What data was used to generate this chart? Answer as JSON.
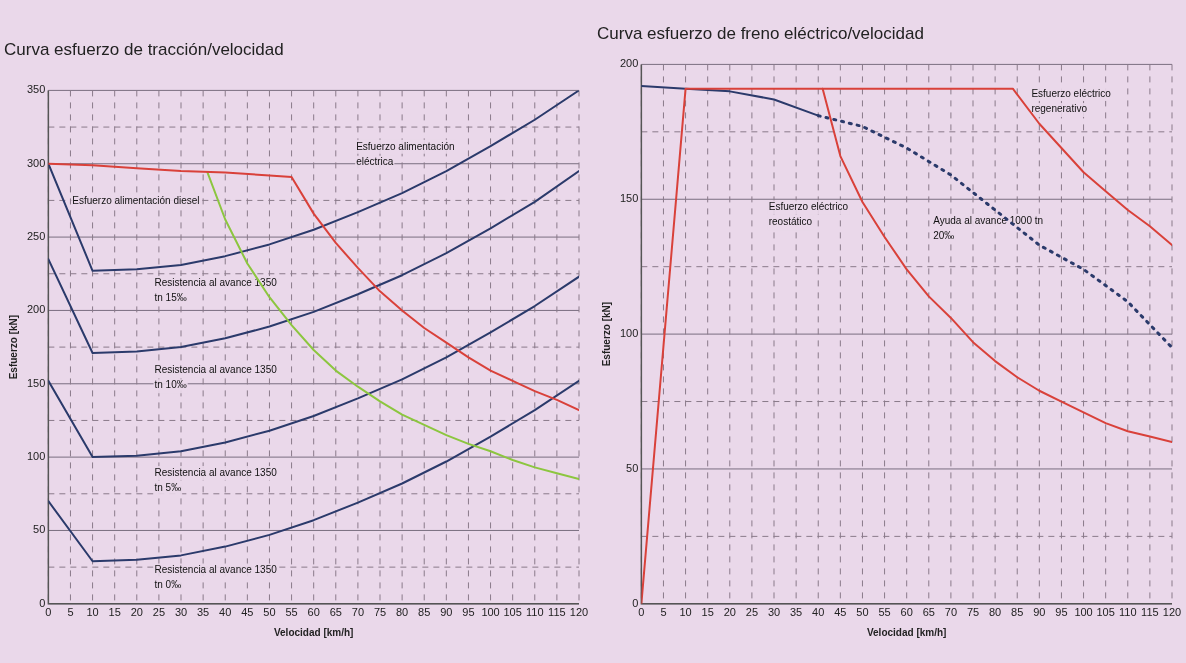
{
  "chart_data": [
    {
      "type": "line",
      "title": "Curva esfuerzo de tracción/velocidad",
      "xlabel": "Velocidad [km/h]",
      "ylabel": "Esfuerzo [kN]",
      "xlim": [
        0,
        120
      ],
      "xticks": [
        0,
        5,
        10,
        15,
        20,
        25,
        30,
        35,
        40,
        45,
        50,
        55,
        60,
        65,
        70,
        75,
        80,
        85,
        90,
        95,
        100,
        105,
        110,
        115,
        120
      ],
      "ylim": [
        0,
        350
      ],
      "yticks": [
        0,
        {
          "value": 25,
          "label": null
        },
        50,
        {
          "value": 75,
          "label": null
        },
        100,
        {
          "value": 125,
          "label": null
        },
        150,
        {
          "value": 175,
          "label": null
        },
        200,
        {
          "value": 225,
          "label": null
        },
        250,
        {
          "value": 275,
          "label": null
        },
        300,
        {
          "value": 325,
          "label": null
        },
        350
      ],
      "grid": true,
      "legend": false,
      "marker": "none",
      "series": [
        {
          "color": "#d9413a",
          "line_style": "solid",
          "x": [
            0,
            10,
            20,
            30,
            40,
            50,
            55,
            60,
            65,
            70,
            75,
            80,
            85,
            90,
            95,
            100,
            105,
            110,
            115,
            120
          ],
          "values": [
            300,
            299,
            297,
            295,
            294,
            292,
            291,
            266,
            246,
            229,
            213,
            200,
            188,
            178,
            168,
            159,
            152,
            145,
            139,
            132
          ]
        },
        {
          "color": "#8cc63f",
          "line_style": "solid",
          "x": [
            36,
            40,
            45,
            50,
            55,
            60,
            65,
            70,
            75,
            80,
            85,
            90,
            95,
            100,
            105,
            110,
            115,
            120
          ],
          "values": [
            294,
            262,
            232,
            209,
            190,
            173,
            159,
            148,
            138,
            129,
            122,
            115,
            109,
            104,
            98,
            93,
            89,
            85
          ]
        },
        {
          "color": "#2b3a6b",
          "line_style": "solid",
          "x": [
            0,
            10,
            20,
            30,
            40,
            50,
            60,
            70,
            80,
            90,
            100,
            110,
            120
          ],
          "values": [
            300,
            227,
            228,
            231,
            237,
            245,
            255,
            267,
            280,
            295,
            312,
            330,
            350
          ]
        },
        {
          "color": "#2b3a6b",
          "line_style": "solid",
          "x": [
            0,
            10,
            20,
            30,
            40,
            50,
            60,
            70,
            80,
            90,
            100,
            110,
            120
          ],
          "values": [
            235,
            171,
            172,
            175,
            181,
            189,
            199,
            211,
            224,
            239,
            256,
            274,
            295
          ]
        },
        {
          "color": "#2b3a6b",
          "line_style": "solid",
          "x": [
            0,
            10,
            20,
            30,
            40,
            50,
            60,
            70,
            80,
            90,
            100,
            110,
            120
          ],
          "values": [
            152,
            100,
            101,
            104,
            110,
            118,
            128,
            140,
            153,
            168,
            185,
            203,
            223
          ]
        },
        {
          "color": "#2b3a6b",
          "line_style": "solid",
          "x": [
            0,
            10,
            20,
            30,
            40,
            50,
            60,
            70,
            80,
            90,
            100,
            110,
            120
          ],
          "values": [
            70,
            29,
            30,
            33,
            39,
            47,
            57,
            69,
            82,
            97,
            114,
            132,
            152
          ]
        }
      ],
      "annotations": [
        "Esfuerzo alimentación diesel",
        "Esfuerzo alimentación\neléctrica",
        "Resistencia al avance 1350\ntn 15‰",
        "Resistencia al avance 1350\ntn 10‰",
        "Resistencia al avance 1350\ntn 5‰",
        "Resistencia al avance 1350\ntn 0‰"
      ]
    },
    {
      "type": "line",
      "title": "Curva esfuerzo de freno eléctrico/velocidad",
      "xlabel": "Velocidad [km/h]",
      "ylabel": "Esfuerzo [kN]",
      "xlim": [
        0,
        120
      ],
      "xticks": [
        0,
        5,
        10,
        15,
        20,
        25,
        30,
        35,
        40,
        45,
        50,
        55,
        60,
        65,
        70,
        75,
        80,
        85,
        90,
        95,
        100,
        105,
        110,
        115,
        120
      ],
      "ylim": [
        0,
        200
      ],
      "yticks": [
        0,
        {
          "value": 25,
          "label": null
        },
        50,
        {
          "value": 75,
          "label": null
        },
        100,
        {
          "value": 125,
          "label": null
        },
        150,
        {
          "value": 175,
          "label": null
        },
        200
      ],
      "grid": true,
      "legend": false,
      "marker": "none",
      "series": [
        {
          "color": "#d9413a",
          "line_style": "solid",
          "x": [
            0,
            10,
            20,
            30,
            40,
            50,
            60,
            70,
            80,
            84,
            90,
            95,
            100,
            105,
            110,
            115,
            120
          ],
          "values": [
            0,
            191,
            191,
            191,
            191,
            191,
            191,
            191,
            191,
            191,
            178,
            169,
            160,
            153,
            146,
            140,
            133
          ]
        },
        {
          "color": "#d9413a",
          "line_style": "solid",
          "x": [
            41,
            45,
            50,
            55,
            60,
            65,
            70,
            75,
            80,
            85,
            90,
            95,
            100,
            105,
            110,
            115,
            120
          ],
          "values": [
            191,
            166,
            149,
            136,
            124,
            114,
            106,
            97,
            90,
            84,
            79,
            75,
            71,
            67,
            64,
            62,
            60
          ]
        },
        {
          "color": "#2b3a6b",
          "line_style": "solid",
          "x": [
            0,
            10,
            20,
            30,
            40
          ],
          "values": [
            192,
            191,
            190,
            187,
            181
          ]
        },
        {
          "color": "#2b3a6b",
          "line_style": "dotted",
          "x": [
            40,
            50,
            60,
            70,
            80,
            90,
            100,
            110,
            120
          ],
          "values": [
            181,
            177,
            169,
            159,
            146,
            133,
            124,
            112,
            95
          ]
        }
      ],
      "annotations": [
        "Esfuerzo eléctrico\nregenerativo",
        "Esfuerzo eléctrico\nreostático",
        "Ayuda al avance 1000 tn\n20‰"
      ]
    }
  ]
}
